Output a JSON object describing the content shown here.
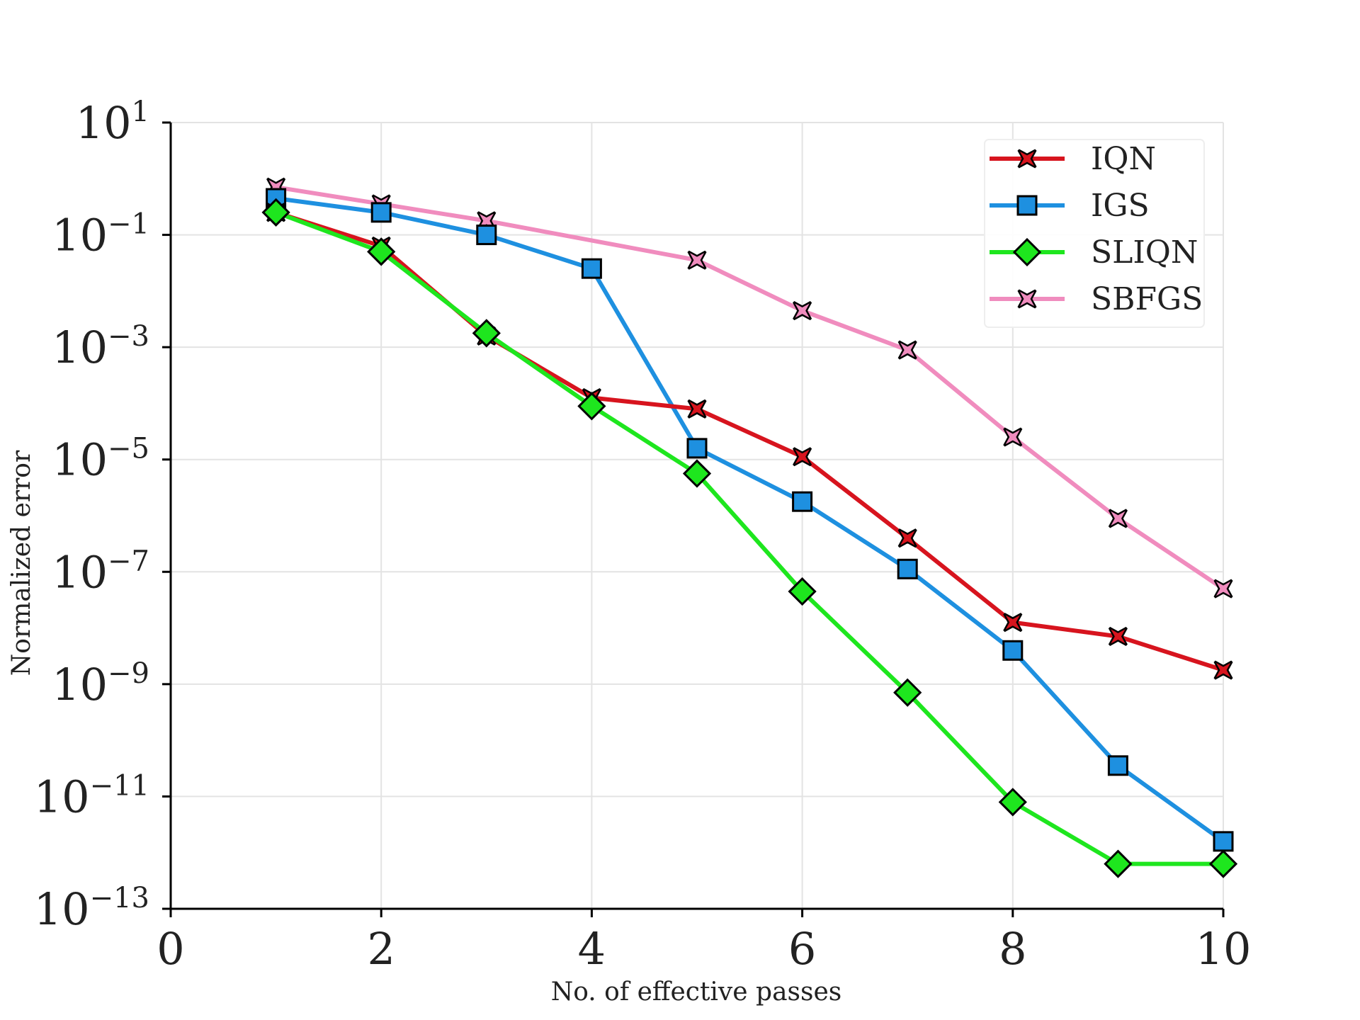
{
  "chart_data": {
    "type": "line",
    "title": "",
    "xlabel": "No. of effective passes",
    "ylabel": "Normalized error",
    "xlim": [
      0,
      10
    ],
    "ylim_log10": [
      -13,
      1
    ],
    "yscale": "log",
    "grid": true,
    "legend_position": "top-right",
    "x_ticks": [
      0,
      2,
      4,
      6,
      8,
      10
    ],
    "y_ticks": [
      {
        "base": "10",
        "exp": "1",
        "log10": 1
      },
      {
        "base": "10",
        "exp": "−1",
        "log10": -1
      },
      {
        "base": "10",
        "exp": "−3",
        "log10": -3
      },
      {
        "base": "10",
        "exp": "−5",
        "log10": -5
      },
      {
        "base": "10",
        "exp": "−7",
        "log10": -7
      },
      {
        "base": "10",
        "exp": "−9",
        "log10": -9
      },
      {
        "base": "10",
        "exp": "−11",
        "log10": -11
      },
      {
        "base": "10",
        "exp": "−13",
        "log10": -13
      }
    ],
    "series": [
      {
        "name": "IQN",
        "marker": "x",
        "color": "#d7141e",
        "x": [
          1,
          2,
          3,
          4,
          5,
          6,
          7,
          8,
          9,
          10
        ],
        "y_log10": [
          -0.6,
          -1.2,
          -2.8,
          -3.9,
          -4.1,
          -4.95,
          -6.4,
          -7.9,
          -8.15,
          -8.75
        ]
      },
      {
        "name": "IGS",
        "marker": "s",
        "color": "#1e90e0",
        "x": [
          1,
          2,
          3,
          4,
          5,
          6,
          7,
          8,
          9,
          10
        ],
        "y_log10": [
          -0.35,
          -0.6,
          -1.0,
          -1.6,
          -4.8,
          -5.75,
          -6.95,
          -8.4,
          -10.45,
          -11.8
        ]
      },
      {
        "name": "SLIQN",
        "marker": "D",
        "color": "#1ee61e",
        "x": [
          1,
          2,
          3,
          4,
          5,
          6,
          7,
          8,
          9,
          10
        ],
        "y_log10": [
          -0.6,
          -1.3,
          -2.75,
          -4.05,
          -5.25,
          -7.35,
          -9.15,
          -11.1,
          -12.2,
          -12.2
        ]
      },
      {
        "name": "SBFGS",
        "marker": "x",
        "color": "#f08cbe",
        "x": [
          1,
          3,
          2,
          5,
          6,
          7,
          8,
          9,
          10
        ],
        "y_log10": [
          -0.15,
          -0.75,
          -0.45,
          -1.45,
          -2.35,
          -3.05,
          -4.6,
          -6.05,
          -7.3
        ]
      }
    ]
  }
}
